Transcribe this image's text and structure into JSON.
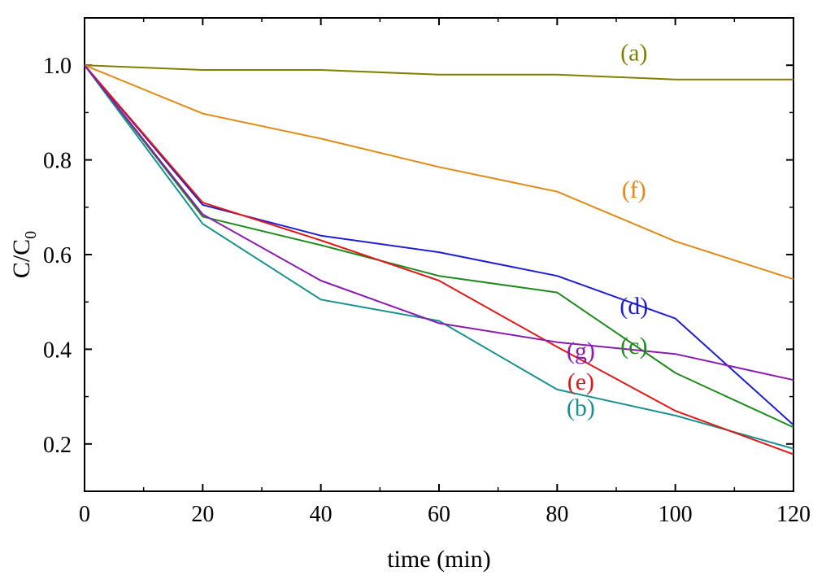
{
  "chart_data": {
    "type": "line",
    "title": "",
    "xlabel": "time (min)",
    "ylabel_main": "C/C",
    "ylabel_sub": "0",
    "xlim": [
      0,
      120
    ],
    "ylim": [
      0.1,
      1.1
    ],
    "x_ticks": [
      0,
      20,
      40,
      60,
      80,
      100,
      120
    ],
    "x_tick_labels": [
      "0",
      "20",
      "40",
      "60",
      "80",
      "100",
      "120"
    ],
    "y_ticks": [
      0.2,
      0.4,
      0.6,
      0.8,
      1.0
    ],
    "y_tick_labels": [
      "0.2",
      "0.4",
      "0.6",
      "0.8",
      "1.0"
    ],
    "grid": false,
    "x": [
      0,
      20,
      40,
      60,
      80,
      100,
      120
    ],
    "series": [
      {
        "name": "(a)",
        "color": "#808000",
        "values": [
          1.0,
          0.99,
          0.99,
          0.98,
          0.98,
          0.97,
          0.97
        ],
        "label_pos": [
          93,
          1.01
        ]
      },
      {
        "name": "(b)",
        "color": "#1a9090",
        "values": [
          1.0,
          0.665,
          0.505,
          0.46,
          0.315,
          0.26,
          0.19
        ],
        "label_pos": [
          84,
          0.26
        ]
      },
      {
        "name": "(c)",
        "color": "#1e8a1e",
        "values": [
          1.0,
          0.68,
          0.62,
          0.555,
          0.52,
          0.35,
          0.235
        ],
        "label_pos": [
          93,
          0.39
        ]
      },
      {
        "name": "(d)",
        "color": "#1f1fd0",
        "values": [
          1.0,
          0.705,
          0.64,
          0.605,
          0.555,
          0.465,
          0.24
        ],
        "label_pos": [
          93,
          0.475
        ]
      },
      {
        "name": "(e)",
        "color": "#e01818",
        "values": [
          1.0,
          0.71,
          0.63,
          0.545,
          0.405,
          0.27,
          0.178
        ],
        "label_pos": [
          84,
          0.315
        ]
      },
      {
        "name": "(f)",
        "color": "#e08a18",
        "values": [
          1.0,
          0.898,
          0.845,
          0.785,
          0.733,
          0.628,
          0.548
        ],
        "label_pos": [
          93,
          0.72
        ]
      },
      {
        "name": "(g)",
        "color": "#8a1ab0",
        "values": [
          1.0,
          0.685,
          0.545,
          0.455,
          0.415,
          0.39,
          0.335
        ],
        "label_pos": [
          84,
          0.38
        ]
      }
    ]
  }
}
